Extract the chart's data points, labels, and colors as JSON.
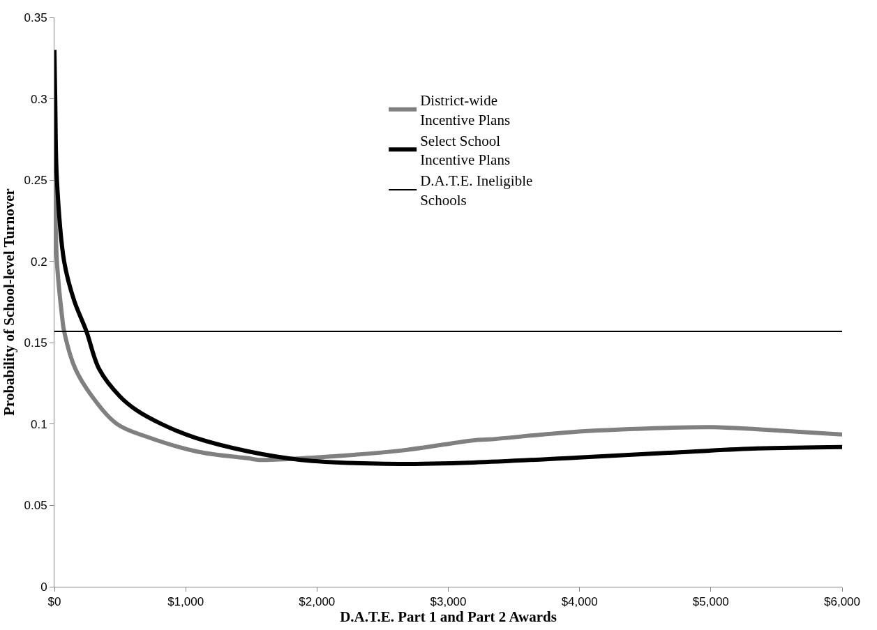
{
  "chart_data": {
    "type": "line",
    "xlabel": "D.A.T.E. Part 1 and Part 2 Awards",
    "ylabel": "Probability of School-level Turnover",
    "series": [
      {
        "name": "District-wide Incentive Plans",
        "color": "#808080",
        "x": [
          0,
          3,
          19,
          60,
          74,
          159,
          287,
          478,
          711,
          1093,
          1476,
          1561,
          1985,
          2637,
          3191,
          3316,
          3996,
          4675,
          5015,
          5355,
          6000
        ],
        "values": [
          0.265,
          0.25,
          0.2,
          0.165,
          0.157,
          0.134,
          0.117,
          0.1,
          0.092,
          0.083,
          0.079,
          0.078,
          0.0795,
          0.0837,
          0.09,
          0.0906,
          0.0954,
          0.0977,
          0.0981,
          0.0968,
          0.0936
        ]
      },
      {
        "name": "Select School Incentive Plans",
        "color": "#000000",
        "x": [
          0,
          6,
          19,
          74,
          150,
          244,
          340,
          499,
          626,
          817,
          1072,
          1476,
          1879,
          2516,
          3191,
          3996,
          4675,
          5355,
          6000
        ],
        "values": [
          0.33,
          0.3,
          0.25,
          0.2,
          0.176,
          0.157,
          0.134,
          0.117,
          0.1085,
          0.1,
          0.0916,
          0.0832,
          0.078,
          0.0756,
          0.0764,
          0.0795,
          0.0823,
          0.085,
          0.0859
        ]
      },
      {
        "name": "D.A.T.E. Ineligible Schools",
        "color": "#000000",
        "x": [
          0,
          6000
        ],
        "values": [
          0.157,
          0.157
        ]
      }
    ],
    "xlim": [
      0,
      6000
    ],
    "xticks": [
      {
        "value": 0,
        "label": "$0"
      },
      {
        "value": 1000,
        "label": "$1,000"
      },
      {
        "value": 2000,
        "label": "$2,000"
      },
      {
        "value": 3000,
        "label": "$3,000"
      },
      {
        "value": 4000,
        "label": "$4,000"
      },
      {
        "value": 5000,
        "label": "$5,000"
      },
      {
        "value": 6000,
        "label": "$6,000"
      }
    ],
    "ylim": [
      0,
      0.35
    ],
    "yticks": [
      0,
      0.05,
      0.1,
      0.15,
      0.2,
      0.25,
      0.3,
      0.35
    ],
    "legend": "top right",
    "marker": "none",
    "line_style": "solid"
  }
}
